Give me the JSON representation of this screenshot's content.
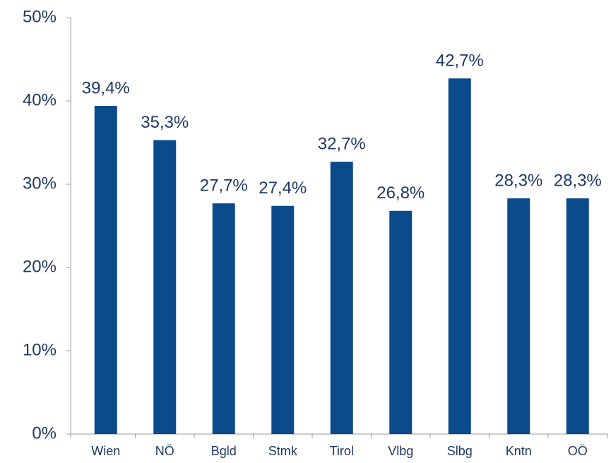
{
  "chart_data": {
    "type": "bar",
    "categories": [
      "Wien",
      "NÖ",
      "Bgld",
      "Stmk",
      "Tirol",
      "Vlbg",
      "Slbg",
      "Kntn",
      "OÖ"
    ],
    "values": [
      39.4,
      35.3,
      27.7,
      27.4,
      32.7,
      26.8,
      42.7,
      28.3,
      28.3
    ],
    "value_labels": [
      "39,4%",
      "35,3%",
      "27,7%",
      "27,4%",
      "32,7%",
      "26,8%",
      "42,7%",
      "28,3%",
      "28,3%"
    ],
    "color": "#0b4a8b",
    "ylim": [
      0,
      50
    ],
    "yticks": [
      {
        "value": 0,
        "label": "0%"
      },
      {
        "value": 10,
        "label": "10%"
      },
      {
        "value": 20,
        "label": "20%"
      },
      {
        "value": 30,
        "label": "30%"
      },
      {
        "value": 40,
        "label": "40%"
      },
      {
        "value": 50,
        "label": "50%"
      }
    ],
    "grid": false
  }
}
